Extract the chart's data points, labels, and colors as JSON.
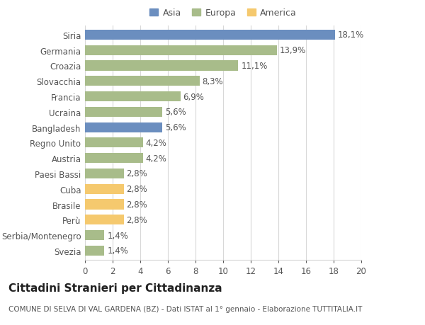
{
  "categories": [
    "Svezia",
    "Serbia/Montenegro",
    "Perù",
    "Brasile",
    "Cuba",
    "Paesi Bassi",
    "Austria",
    "Regno Unito",
    "Bangladesh",
    "Ucraina",
    "Francia",
    "Slovacchia",
    "Croazia",
    "Germania",
    "Siria"
  ],
  "values": [
    1.4,
    1.4,
    2.8,
    2.8,
    2.8,
    2.8,
    4.2,
    4.2,
    5.6,
    5.6,
    6.9,
    8.3,
    11.1,
    13.9,
    18.1
  ],
  "labels": [
    "1,4%",
    "1,4%",
    "2,8%",
    "2,8%",
    "2,8%",
    "2,8%",
    "4,2%",
    "4,2%",
    "5,6%",
    "5,6%",
    "6,9%",
    "8,3%",
    "11,1%",
    "13,9%",
    "18,1%"
  ],
  "colors": [
    "#a8bc8a",
    "#a8bc8a",
    "#f5c96e",
    "#f5c96e",
    "#f5c96e",
    "#a8bc8a",
    "#a8bc8a",
    "#a8bc8a",
    "#6b8ebf",
    "#a8bc8a",
    "#a8bc8a",
    "#a8bc8a",
    "#a8bc8a",
    "#a8bc8a",
    "#6b8ebf"
  ],
  "legend_labels": [
    "Asia",
    "Europa",
    "America"
  ],
  "legend_colors": [
    "#6b8ebf",
    "#a8bc8a",
    "#f5c96e"
  ],
  "title": "Cittadini Stranieri per Cittadinanza",
  "subtitle": "COMUNE DI SELVA DI VAL GARDENA (BZ) - Dati ISTAT al 1° gennaio - Elaborazione TUTTITALIA.IT",
  "xlim": [
    0,
    20
  ],
  "xticks": [
    0,
    2,
    4,
    6,
    8,
    10,
    12,
    14,
    16,
    18,
    20
  ],
  "background_color": "#ffffff",
  "bar_height": 0.65,
  "grid_color": "#d8d8d8",
  "text_color": "#555555",
  "label_fontsize": 8.5,
  "title_fontsize": 11,
  "subtitle_fontsize": 7.5
}
